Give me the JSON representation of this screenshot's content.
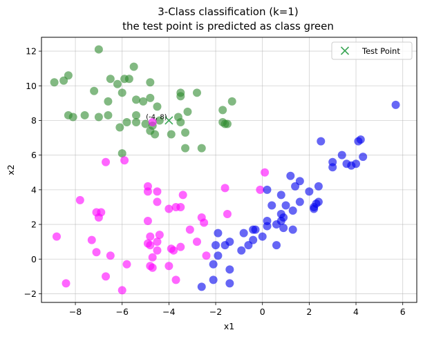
{
  "chart_data": {
    "type": "scatter",
    "title": [
      "3-Class classification (k=1)",
      "the test point is predicted as class green"
    ],
    "xlabel": "x1",
    "ylabel": "x2",
    "xlim": [
      -9.45,
      6.6
    ],
    "ylim": [
      -2.5,
      12.8
    ],
    "xticks": [
      -8,
      -6,
      -4,
      -2,
      0,
      2,
      4,
      6
    ],
    "yticks": [
      -2,
      0,
      2,
      4,
      6,
      8,
      10,
      12
    ],
    "grid": true,
    "legend": {
      "placement": "top-right",
      "entries": [
        "Test Point"
      ]
    },
    "colors": {
      "green": "#2e8b2e",
      "magenta": "#ff00ff",
      "blue": "#0000ee",
      "test": "#3aa655"
    },
    "test_point": {
      "x": -4,
      "y": 8,
      "label": "(-4, 8)"
    },
    "series": [
      {
        "name": "",
        "color": "#2e8b2e",
        "points": [
          [
            -7.0,
            12.1
          ],
          [
            -8.3,
            10.6
          ],
          [
            -8.5,
            10.3
          ],
          [
            -8.9,
            10.2
          ],
          [
            -7.2,
            9.7
          ],
          [
            -6.5,
            10.4
          ],
          [
            -6.2,
            10.1
          ],
          [
            -5.9,
            10.4
          ],
          [
            -5.7,
            10.4
          ],
          [
            -5.5,
            11.1
          ],
          [
            -6.0,
            9.6
          ],
          [
            -5.4,
            9.2
          ],
          [
            -5.1,
            9.1
          ],
          [
            -4.8,
            10.2
          ],
          [
            -4.8,
            9.3
          ],
          [
            -4.5,
            8.8
          ],
          [
            -3.5,
            9.6
          ],
          [
            -3.5,
            9.4
          ],
          [
            -2.8,
            9.6
          ],
          [
            -1.3,
            9.1
          ],
          [
            -6.6,
            9.1
          ],
          [
            -8.3,
            8.3
          ],
          [
            -8.1,
            8.2
          ],
          [
            -7.6,
            8.3
          ],
          [
            -7.0,
            8.2
          ],
          [
            -6.6,
            8.3
          ],
          [
            -5.4,
            8.3
          ],
          [
            -5.4,
            7.9
          ],
          [
            -5.0,
            7.8
          ],
          [
            -4.7,
            7.7
          ],
          [
            -4.8,
            7.4
          ],
          [
            -4.6,
            7.2
          ],
          [
            -6.1,
            7.6
          ],
          [
            -5.8,
            7.9
          ],
          [
            -3.9,
            7.2
          ],
          [
            -3.5,
            7.9
          ],
          [
            -3.6,
            8.2
          ],
          [
            -3.2,
            8.5
          ],
          [
            -3.3,
            7.3
          ],
          [
            -3.3,
            6.4
          ],
          [
            -2.6,
            6.4
          ],
          [
            -6.0,
            6.1
          ],
          [
            -1.7,
            8.6
          ],
          [
            -1.7,
            7.9
          ],
          [
            -1.6,
            7.8
          ],
          [
            -1.5,
            7.8
          ],
          [
            -4.4,
            8.0
          ]
        ]
      },
      {
        "name": "",
        "color": "#ff00ff",
        "points": [
          [
            -8.4,
            -1.4
          ],
          [
            -8.8,
            1.3
          ],
          [
            -7.8,
            3.4
          ],
          [
            -7.1,
            2.7
          ],
          [
            -6.9,
            2.7
          ],
          [
            -7.0,
            2.4
          ],
          [
            -7.1,
            0.4
          ],
          [
            -7.3,
            1.1
          ],
          [
            -6.7,
            -1.0
          ],
          [
            -6.5,
            0.2
          ],
          [
            -6.0,
            -1.8
          ],
          [
            -5.8,
            -0.3
          ],
          [
            -6.7,
            5.6
          ],
          [
            -5.9,
            5.7
          ],
          [
            -4.9,
            4.2
          ],
          [
            -4.9,
            3.9
          ],
          [
            -4.5,
            3.9
          ],
          [
            -4.5,
            3.3
          ],
          [
            -4.0,
            2.9
          ],
          [
            -3.7,
            3.0
          ],
          [
            -3.4,
            3.7
          ],
          [
            -3.5,
            3.0
          ],
          [
            -4.9,
            2.2
          ],
          [
            -4.4,
            1.4
          ],
          [
            -4.8,
            1.3
          ],
          [
            -4.5,
            1.0
          ],
          [
            -4.9,
            0.9
          ],
          [
            -4.8,
            0.8
          ],
          [
            -4.5,
            0.5
          ],
          [
            -4.7,
            0.1
          ],
          [
            -4.8,
            -0.4
          ],
          [
            -4.7,
            -0.5
          ],
          [
            -4.0,
            -0.4
          ],
          [
            -3.8,
            0.5
          ],
          [
            -3.9,
            0.6
          ],
          [
            -3.5,
            0.7
          ],
          [
            -3.1,
            1.7
          ],
          [
            -2.8,
            1.0
          ],
          [
            -2.6,
            2.4
          ],
          [
            -2.5,
            2.1
          ],
          [
            -2.4,
            0.2
          ],
          [
            -3.7,
            -1.2
          ],
          [
            -1.6,
            4.1
          ],
          [
            -1.5,
            2.6
          ],
          [
            -0.1,
            4.0
          ],
          [
            0.1,
            5.0
          ],
          [
            -4.7,
            7.9
          ]
        ]
      },
      {
        "name": "",
        "color": "#0000ee",
        "points": [
          [
            5.7,
            8.9
          ],
          [
            2.5,
            6.8
          ],
          [
            4.2,
            6.9
          ],
          [
            4.1,
            6.8
          ],
          [
            3.4,
            6.0
          ],
          [
            3.0,
            5.6
          ],
          [
            3.0,
            5.3
          ],
          [
            3.6,
            5.5
          ],
          [
            3.8,
            5.4
          ],
          [
            4.0,
            5.5
          ],
          [
            4.3,
            5.9
          ],
          [
            1.2,
            4.8
          ],
          [
            1.6,
            4.5
          ],
          [
            1.4,
            4.2
          ],
          [
            2.4,
            4.2
          ],
          [
            2.0,
            3.9
          ],
          [
            0.8,
            3.7
          ],
          [
            1.0,
            3.1
          ],
          [
            1.6,
            3.3
          ],
          [
            2.2,
            3.0
          ],
          [
            2.3,
            3.2
          ],
          [
            2.4,
            3.3
          ],
          [
            2.2,
            2.9
          ],
          [
            1.3,
            2.8
          ],
          [
            0.4,
            3.1
          ],
          [
            0.2,
            4.0
          ],
          [
            0.6,
            2.0
          ],
          [
            0.8,
            2.6
          ],
          [
            0.9,
            2.4
          ],
          [
            0.8,
            2.2
          ],
          [
            0.9,
            1.8
          ],
          [
            1.3,
            1.7
          ],
          [
            0.2,
            2.2
          ],
          [
            0.2,
            1.9
          ],
          [
            0.6,
            0.8
          ],
          [
            0.0,
            1.3
          ],
          [
            -0.4,
            1.7
          ],
          [
            -0.3,
            1.7
          ],
          [
            -0.6,
            0.8
          ],
          [
            -0.8,
            1.5
          ],
          [
            -0.4,
            1.1
          ],
          [
            -0.9,
            0.5
          ],
          [
            -1.4,
            1.0
          ],
          [
            -1.9,
            1.5
          ],
          [
            -1.6,
            0.8
          ],
          [
            -2.0,
            0.8
          ],
          [
            -1.9,
            0.2
          ],
          [
            -2.1,
            -0.3
          ],
          [
            -2.6,
            -1.6
          ],
          [
            -2.1,
            -1.2
          ],
          [
            -1.4,
            -0.6
          ],
          [
            -1.4,
            -1.4
          ]
        ]
      }
    ]
  }
}
